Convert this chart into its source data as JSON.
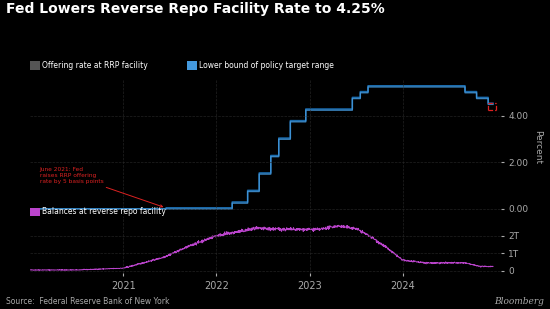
{
  "title": "Fed Lowers Reverse Repo Facility Rate to 4.25%",
  "title_color": "#ffffff",
  "background_color": "#000000",
  "subplot1_label1": "Offering rate at RRP facility",
  "subplot1_label2": "Lower bound of policy target range",
  "subplot2_label": "Balances at reverse repo facility",
  "source_text": "Source:  Federal Reserve Bank of New York",
  "bloomberg_text": "Bloomberg",
  "annotation_text": "June 2021: Fed\nraises RRP offering\nrate by 5 basis points",
  "annotation_color": "#dd2222",
  "rrp_color": "#1a6aab",
  "lower_bound_color": "#4499dd",
  "dashed_line_color": "#dd2222",
  "axis1_ylim": [
    -0.25,
    5.6
  ],
  "axis1_yticks": [
    0.0,
    2.0,
    4.0
  ],
  "axis1_ytick_labels": [
    "0.00",
    "2.00",
    "4.00"
  ],
  "axis2_ylim": [
    -150000000000.0,
    3100000000000.0
  ],
  "axis2_yticks": [
    0,
    1000000000000.0,
    2000000000000.0
  ],
  "axis2_ytick_labels": [
    "0",
    "1T",
    "2T"
  ],
  "xlim_start": 2020.0,
  "xlim_end": 2025.05,
  "xtick_positions": [
    2021.0,
    2022.0,
    2023.0,
    2024.0
  ],
  "xtick_labels": [
    "2021",
    "2022",
    "2023",
    "2024"
  ],
  "grid_color": "#2a2a2a",
  "tick_color": "#aaaaaa",
  "legend_color": "#ffffff",
  "purple_color": "#bb44cc",
  "legend1_sq_color": "#555555",
  "legend2_sq_color": "#2255aa"
}
